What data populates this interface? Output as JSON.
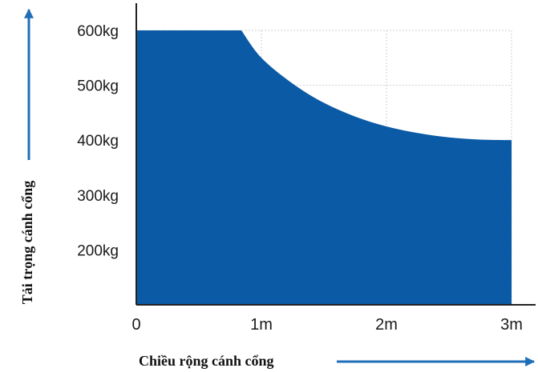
{
  "chart_data": {
    "type": "area",
    "xlabel": "Chiều rộng cánh cổng",
    "ylabel": "Tải trọng cánh cổng",
    "x_ticks": [
      {
        "value": 0,
        "label": "0"
      },
      {
        "value": 1,
        "label": "1m"
      },
      {
        "value": 2,
        "label": "2m"
      },
      {
        "value": 3,
        "label": "3m"
      }
    ],
    "y_ticks": [
      {
        "value": 200,
        "label": "200kg"
      },
      {
        "value": 300,
        "label": "300kg"
      },
      {
        "value": 400,
        "label": "400kg"
      },
      {
        "value": 500,
        "label": "500kg"
      },
      {
        "value": 600,
        "label": "600kg"
      }
    ],
    "xlim": [
      0,
      3
    ],
    "ylim": [
      100,
      600
    ],
    "grid": true,
    "series": [
      {
        "x": [
          0,
          0.84,
          1.0,
          1.25,
          1.5,
          1.75,
          2.0,
          2.25,
          2.5,
          2.75,
          3.0
        ],
        "y": [
          600,
          600,
          550,
          503,
          468,
          443,
          425,
          413,
          405,
          401,
          400
        ]
      }
    ],
    "colors": {
      "fill": "#0a5aa6",
      "axis": "#222222",
      "grid": "#cfcfcf",
      "arrow": "#1f6fb8"
    }
  }
}
